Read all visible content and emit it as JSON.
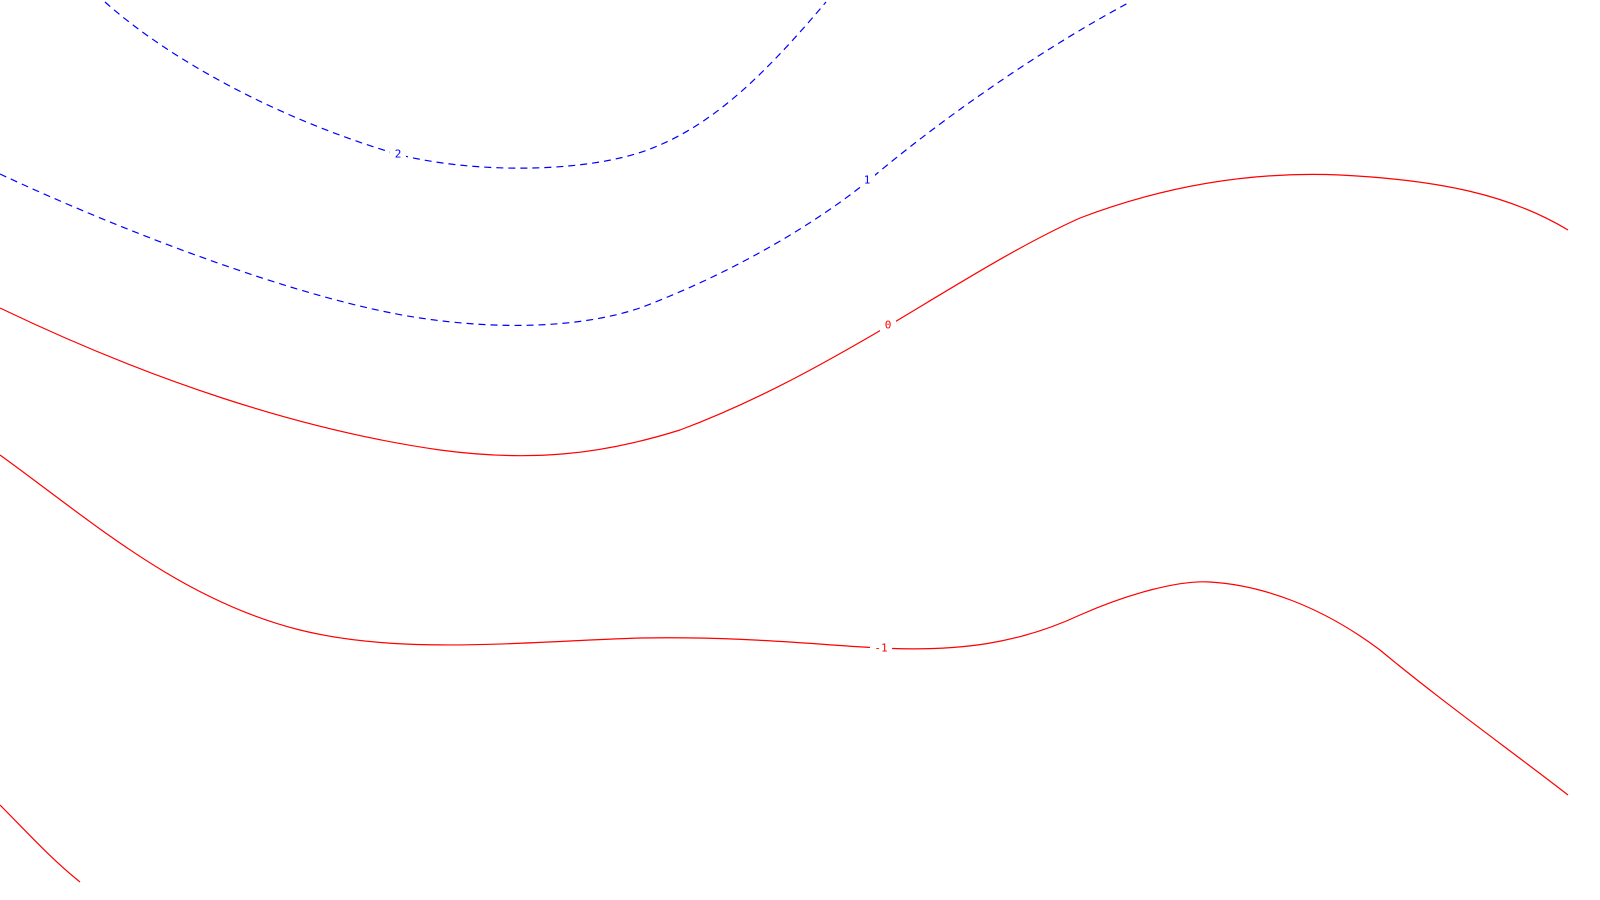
{
  "chart_data": {
    "type": "contour",
    "title": "",
    "xlabel": "",
    "ylabel": "",
    "grid": false,
    "legend": "none",
    "colors": {
      "positive": "#0000ff",
      "nonpositive": "#ff0000",
      "background": "#ffffff"
    },
    "line_styles": {
      "positive": "dashed",
      "nonpositive": "solid"
    },
    "contours": [
      {
        "level": 2,
        "label": "2",
        "color": "#0000ff",
        "style": "dashed"
      },
      {
        "level": 1,
        "label": "1",
        "color": "#0000ff",
        "style": "dashed"
      },
      {
        "level": 0,
        "label": "0",
        "color": "#ff0000",
        "style": "solid"
      },
      {
        "level": -1,
        "label": "-1",
        "color": "#ff0000",
        "style": "solid"
      },
      {
        "level": -2,
        "label": "",
        "color": "#ff0000",
        "style": "solid"
      }
    ]
  }
}
